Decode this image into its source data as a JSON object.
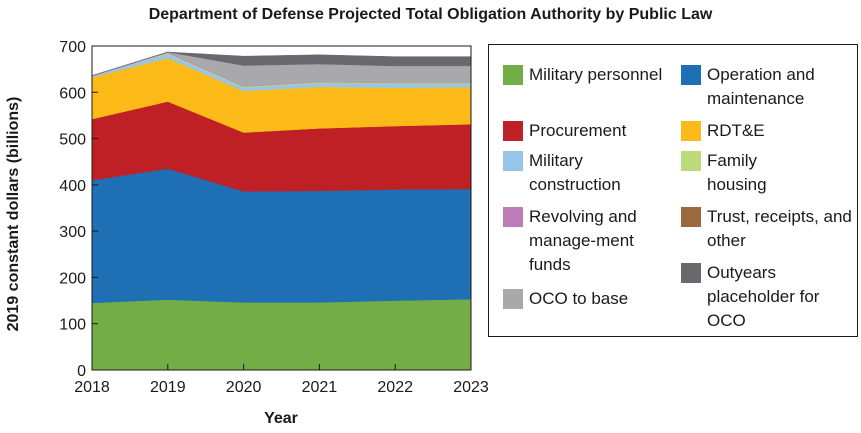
{
  "chart_data": {
    "type": "area",
    "title": "Department of Defense Projected Total Obligation Authority by Public Law",
    "xlabel": "Year",
    "ylabel": "2019 constant dollars (billions)",
    "x": [
      2018,
      2019,
      2020,
      2021,
      2022,
      2023
    ],
    "xticks": [
      "2018",
      "2019",
      "2020",
      "2021",
      "2022",
      "2023"
    ],
    "ylim": [
      0,
      700
    ],
    "yticks": [
      "0",
      "100",
      "200",
      "300",
      "400",
      "500",
      "600",
      "700"
    ],
    "stacked": true,
    "legend_position": "right",
    "series": [
      {
        "name": "Military personnel",
        "color": "#72ad45",
        "values": [
          145,
          152,
          146,
          146,
          150,
          153
        ]
      },
      {
        "name": "Operation and maintenance",
        "color": "#1f6fb5",
        "values": [
          265,
          283,
          240,
          241,
          240,
          238
        ]
      },
      {
        "name": "Procurement",
        "color": "#be2026",
        "values": [
          132,
          145,
          127,
          135,
          137,
          140
        ]
      },
      {
        "name": "RDT&E",
        "color": "#fcba19",
        "values": [
          90,
          94,
          90,
          90,
          83,
          80
        ]
      },
      {
        "name": "Military construction",
        "color": "#97c5e9",
        "values": [
          3,
          9,
          7,
          8,
          8,
          7
        ]
      },
      {
        "name": "Family housing",
        "color": "#bcda7c",
        "values": [
          0,
          2,
          2,
          2,
          2,
          2
        ]
      },
      {
        "name": "Revolving and manage-ment funds",
        "color": "#bc7cb8",
        "values": [
          1,
          2,
          1,
          1,
          1,
          1
        ]
      },
      {
        "name": "Trust, receipts, and other",
        "color": "#9b6840",
        "values": [
          0,
          0,
          0,
          0,
          0,
          0
        ]
      },
      {
        "name": "OCO to base",
        "color": "#a9a9ab",
        "values": [
          0,
          0,
          45,
          38,
          36,
          36
        ]
      },
      {
        "name": "Outyears placeholder for OCO",
        "color": "#67696c",
        "values": [
          0,
          0,
          20,
          20,
          20,
          20
        ]
      }
    ]
  },
  "legend": {
    "left_column": [
      {
        "label": "Military personnel",
        "color": "#72ad45",
        "icon": "square-swatch"
      },
      {
        "label": "Procurement",
        "color": "#be2026",
        "icon": "square-swatch"
      },
      {
        "label": "Military construction",
        "color": "#97c5e9",
        "icon": "square-swatch"
      },
      {
        "label": "Revolving and manage-ment funds",
        "color": "#bc7cb8",
        "icon": "square-swatch"
      },
      {
        "label": "OCO to base",
        "color": "#a9a9ab",
        "icon": "square-swatch"
      }
    ],
    "right_column": [
      {
        "label": "Operation and maintenance",
        "color": "#1f6fb5",
        "icon": "square-swatch"
      },
      {
        "label": "RDT&E",
        "color": "#fcba19",
        "icon": "square-swatch"
      },
      {
        "label": "Family housing",
        "color": "#bcda7c",
        "icon": "square-swatch"
      },
      {
        "label": "Trust, receipts, and other",
        "color": "#9b6840",
        "icon": "square-swatch"
      },
      {
        "label": "Outyears placeholder for OCO",
        "color": "#67696c",
        "icon": "square-swatch"
      }
    ]
  }
}
